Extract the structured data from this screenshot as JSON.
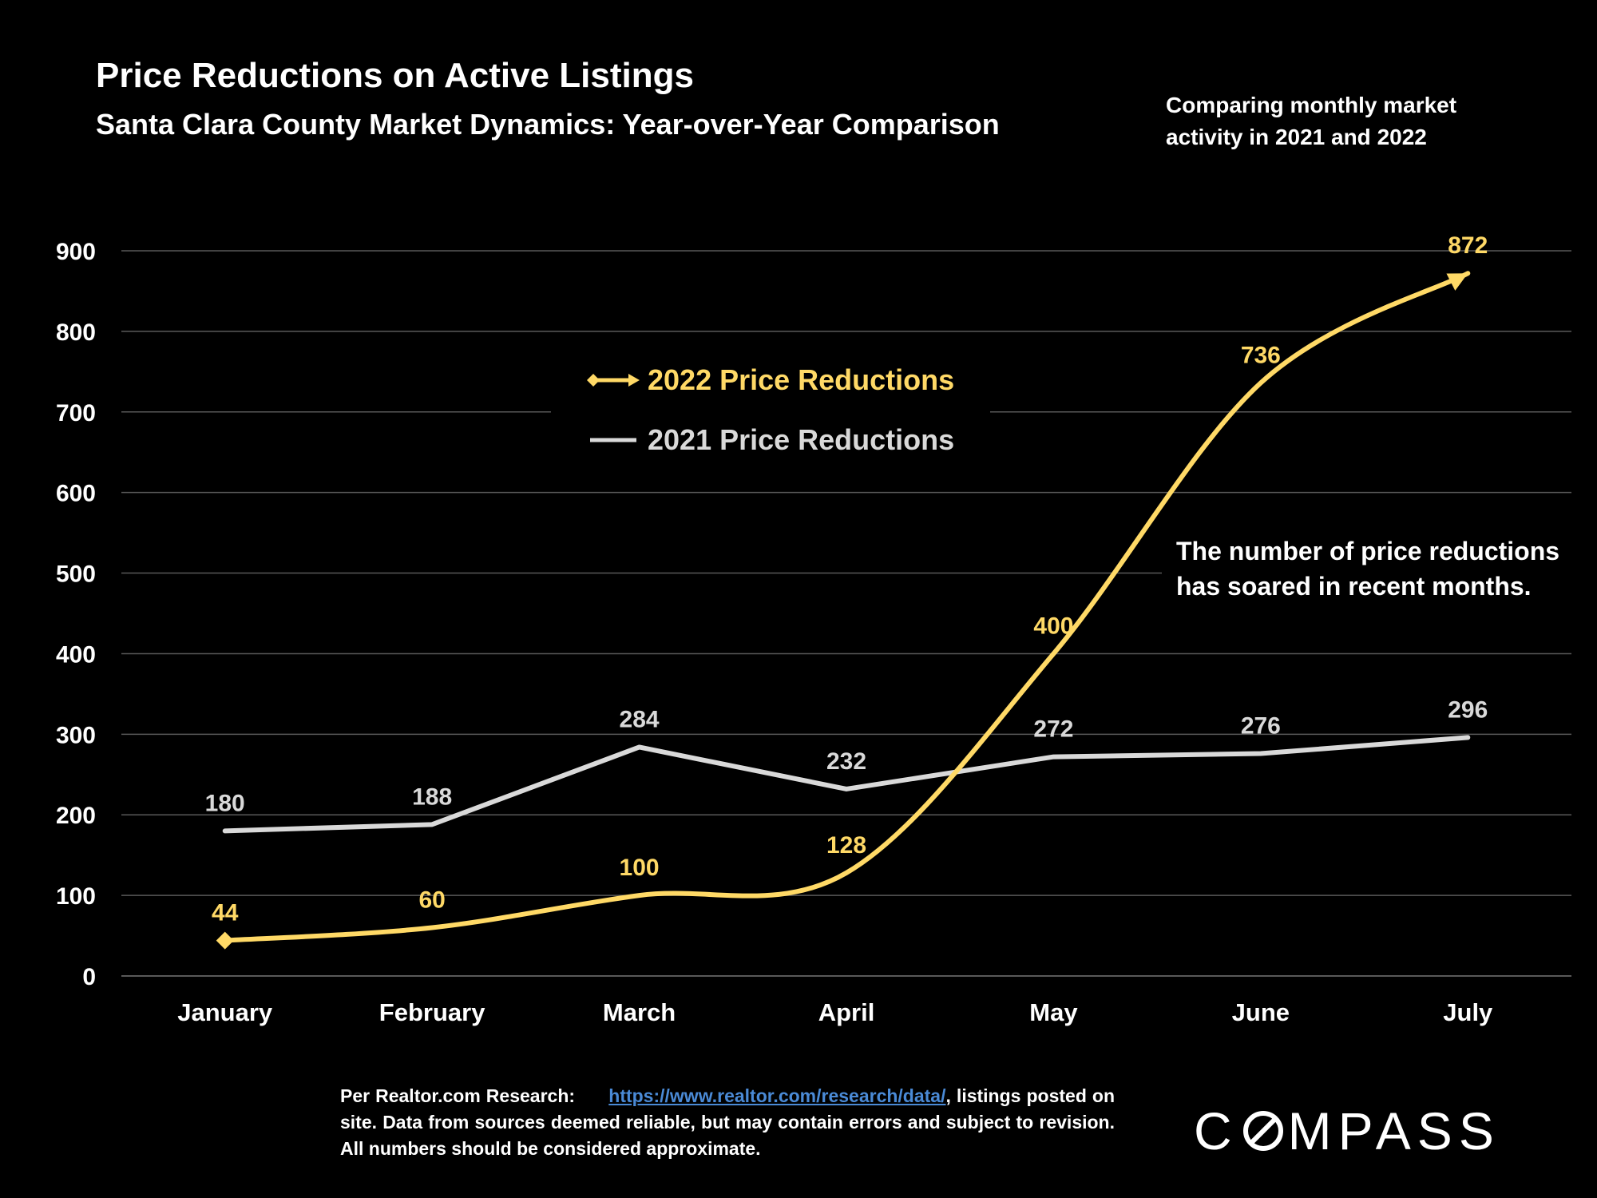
{
  "header": {
    "title": "Price Reductions on Active Listings",
    "subtitle": "Santa Clara County Market Dynamics: Year-over-Year Comparison",
    "corner_note": "Comparing monthly market activity in 2021 and 2022"
  },
  "callout": "The number of price reductions has soared in recent months.",
  "footnote": {
    "prefix": "Per Realtor.com Research:",
    "link": "https://www.realtor.com/research/data/",
    "suffix": ", listings posted on site. Data from sources deemed reliable, but may contain errors and subject to revision. All numbers should be considered approximate."
  },
  "logo": {
    "before": "C",
    "after": "MPASS"
  },
  "colors": {
    "background": "#000000",
    "series_2022": "#ffd966",
    "series_2021": "#d9d9d9",
    "gridline": "#595959",
    "text": "#ffffff"
  },
  "chart_data": {
    "type": "line",
    "categories": [
      "January",
      "February",
      "March",
      "April",
      "May",
      "June",
      "July"
    ],
    "ylim": [
      0,
      900
    ],
    "yticks": [
      0,
      100,
      200,
      300,
      400,
      500,
      600,
      700,
      800,
      900
    ],
    "grid": true,
    "legend_position": "center-top",
    "series": [
      {
        "name": "2022 Price Reductions",
        "values": [
          44,
          60,
          100,
          128,
          400,
          736,
          872
        ],
        "color": "#ffd966",
        "smooth": true,
        "markers": "diamond-start-arrow-end"
      },
      {
        "name": "2021 Price Reductions",
        "values": [
          180,
          188,
          284,
          232,
          272,
          276,
          296
        ],
        "color": "#d9d9d9",
        "smooth": false
      }
    ]
  }
}
